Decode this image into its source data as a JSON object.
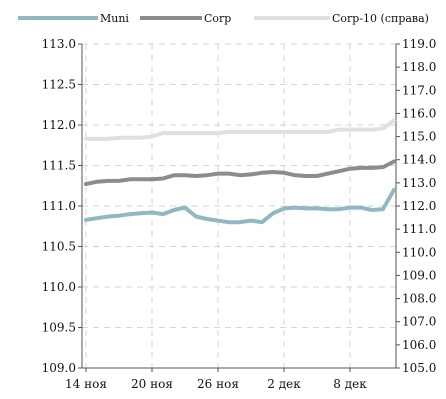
{
  "chart_data": {
    "type": "line",
    "title": "",
    "xlabel": "",
    "ylabel": "",
    "x": [
      "14 ноя",
      "15 ноя",
      "16 ноя",
      "17 ноя",
      "18 ноя",
      "19 ноя",
      "20 ноя",
      "21 ноя",
      "22 ноя",
      "23 ноя",
      "24 ноя",
      "25 ноя",
      "26 ноя",
      "27 ноя",
      "28 ноя",
      "29 ноя",
      "30 ноя",
      "1 дек",
      "2 дек",
      "3 дек",
      "4 дек",
      "5 дек",
      "6 дек",
      "7 дек",
      "8 дек",
      "9 дек",
      "10 дек",
      "11 дек",
      "12 дек"
    ],
    "xticks": [
      "14 ноя",
      "20 ноя",
      "26 ноя",
      "2 дек",
      "8 дек"
    ],
    "yticks_left": [
      "109.0",
      "109.5",
      "110.0",
      "110.5",
      "111.0",
      "111.5",
      "112.0",
      "112.5",
      "113.0"
    ],
    "yticks_right": [
      "105.0",
      "106.0",
      "107.0",
      "108.0",
      "109.0",
      "110.0",
      "111.0",
      "112.0",
      "113.0",
      "114.0",
      "115.0",
      "116.0",
      "117.0",
      "118.0",
      "119.0"
    ],
    "ylim_left": [
      109.0,
      113.0
    ],
    "ylim_right": [
      105.0,
      119.0
    ],
    "grid": true,
    "legend_position": "top",
    "series": [
      {
        "name": "Muni",
        "axis": "left",
        "color": "#8fb8c2",
        "values": [
          110.83,
          110.85,
          110.87,
          110.88,
          110.9,
          110.91,
          110.92,
          110.9,
          110.95,
          110.98,
          110.87,
          110.84,
          110.82,
          110.8,
          110.8,
          110.82,
          110.8,
          110.91,
          110.97,
          110.98,
          110.97,
          110.97,
          110.96,
          110.96,
          110.98,
          110.98,
          110.95,
          110.96,
          111.2
        ]
      },
      {
        "name": "Corp",
        "axis": "left",
        "color": "#8c8c8c",
        "values": [
          111.27,
          111.3,
          111.31,
          111.31,
          111.33,
          111.33,
          111.33,
          111.34,
          111.38,
          111.38,
          111.37,
          111.38,
          111.4,
          111.4,
          111.38,
          111.39,
          111.41,
          111.42,
          111.41,
          111.38,
          111.37,
          111.37,
          111.4,
          111.43,
          111.46,
          111.47,
          111.47,
          111.48,
          111.55
        ]
      },
      {
        "name": "Corp-10 (справа)",
        "axis": "right",
        "color": "#e0e0e0",
        "values": [
          114.9,
          114.9,
          114.9,
          114.95,
          114.95,
          114.95,
          115.0,
          115.15,
          115.15,
          115.15,
          115.15,
          115.15,
          115.15,
          115.2,
          115.2,
          115.2,
          115.2,
          115.2,
          115.2,
          115.2,
          115.2,
          115.2,
          115.2,
          115.3,
          115.3,
          115.3,
          115.3,
          115.35,
          115.7
        ]
      }
    ]
  }
}
